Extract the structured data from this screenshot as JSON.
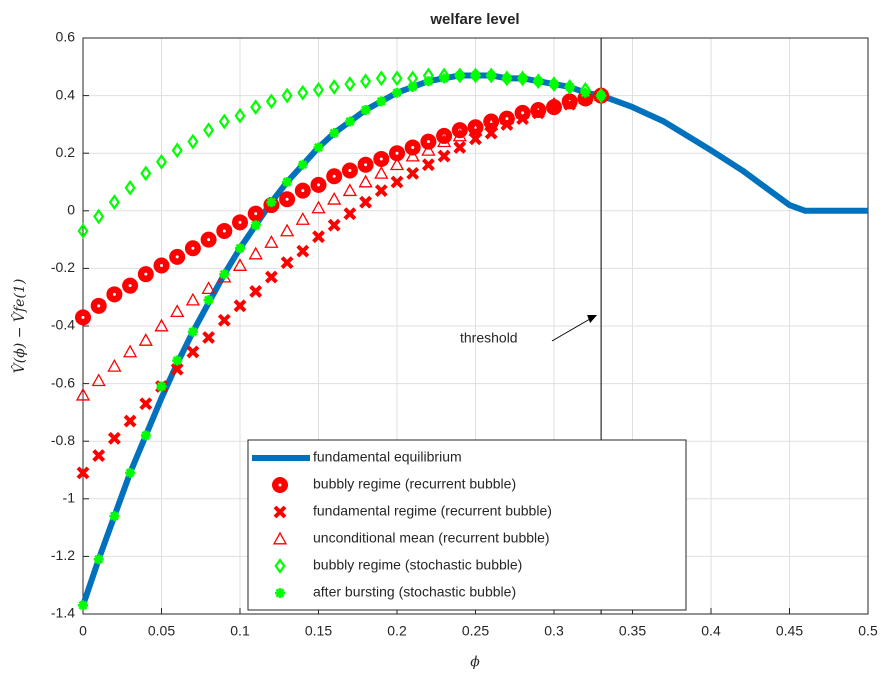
{
  "chart_data": {
    "type": "line",
    "title": "welfare level",
    "xlabel": "ϕ",
    "ylabel": "V̂(ϕ) − V̂fe(1)",
    "xlim": [
      0,
      0.5
    ],
    "xticks": [
      0,
      0.05,
      0.1,
      0.15,
      0.2,
      0.25,
      0.3,
      0.35,
      0.4,
      0.45,
      0.5
    ],
    "ylim": [
      -1.4,
      0.6
    ],
    "yticks": [
      -1.4,
      -1.2,
      -1,
      -0.8,
      -0.6,
      -0.4,
      -0.2,
      0,
      0.2,
      0.4,
      0.6
    ],
    "grid": true,
    "legend": "lower center",
    "threshold": {
      "x": 0.33,
      "label": "threshold"
    },
    "series": [
      {
        "name": "fundamental equilibrium",
        "color": "#0072bd",
        "marker": "none",
        "x": [
          0,
          0.01,
          0.02,
          0.03,
          0.04,
          0.05,
          0.06,
          0.07,
          0.08,
          0.09,
          0.1,
          0.11,
          0.12,
          0.13,
          0.14,
          0.15,
          0.16,
          0.17,
          0.18,
          0.19,
          0.2,
          0.21,
          0.22,
          0.23,
          0.24,
          0.25,
          0.26,
          0.27,
          0.28,
          0.29,
          0.3,
          0.31,
          0.32,
          0.33,
          0.35,
          0.37,
          0.4,
          0.42,
          0.45,
          0.46,
          0.5
        ],
        "values": [
          -1.37,
          -1.21,
          -1.06,
          -0.91,
          -0.78,
          -0.65,
          -0.53,
          -0.42,
          -0.32,
          -0.22,
          -0.13,
          -0.05,
          0.03,
          0.1,
          0.16,
          0.22,
          0.27,
          0.31,
          0.35,
          0.38,
          0.41,
          0.43,
          0.45,
          0.46,
          0.47,
          0.47,
          0.47,
          0.46,
          0.46,
          0.45,
          0.44,
          0.43,
          0.41,
          0.4,
          0.36,
          0.31,
          0.21,
          0.14,
          0.02,
          0,
          0
        ]
      },
      {
        "name": "bubbly regime (recurrent bubble)",
        "color": "#ff0000",
        "marker": "circle",
        "x": [
          0,
          0.01,
          0.02,
          0.03,
          0.04,
          0.05,
          0.06,
          0.07,
          0.08,
          0.09,
          0.1,
          0.11,
          0.12,
          0.13,
          0.14,
          0.15,
          0.16,
          0.17,
          0.18,
          0.19,
          0.2,
          0.21,
          0.22,
          0.23,
          0.24,
          0.25,
          0.26,
          0.27,
          0.28,
          0.29,
          0.3,
          0.31,
          0.32,
          0.33
        ],
        "values": [
          -0.37,
          -0.33,
          -0.29,
          -0.26,
          -0.22,
          -0.19,
          -0.16,
          -0.13,
          -0.1,
          -0.07,
          -0.04,
          -0.01,
          0.02,
          0.04,
          0.07,
          0.09,
          0.12,
          0.14,
          0.16,
          0.18,
          0.2,
          0.22,
          0.24,
          0.26,
          0.28,
          0.29,
          0.31,
          0.32,
          0.34,
          0.35,
          0.36,
          0.38,
          0.39,
          0.4
        ]
      },
      {
        "name": "fundamental regime (recurrent bubble)",
        "color": "#ff0000",
        "marker": "x",
        "x": [
          0,
          0.01,
          0.02,
          0.03,
          0.04,
          0.05,
          0.06,
          0.07,
          0.08,
          0.09,
          0.1,
          0.11,
          0.12,
          0.13,
          0.14,
          0.15,
          0.16,
          0.17,
          0.18,
          0.19,
          0.2,
          0.21,
          0.22,
          0.23,
          0.24,
          0.25,
          0.26,
          0.27,
          0.28,
          0.29,
          0.3,
          0.31,
          0.32,
          0.33
        ],
        "values": [
          -0.91,
          -0.85,
          -0.79,
          -0.73,
          -0.67,
          -0.61,
          -0.55,
          -0.49,
          -0.44,
          -0.38,
          -0.33,
          -0.28,
          -0.23,
          -0.18,
          -0.14,
          -0.09,
          -0.05,
          -0.01,
          0.03,
          0.07,
          0.1,
          0.13,
          0.16,
          0.19,
          0.22,
          0.25,
          0.27,
          0.3,
          0.32,
          0.34,
          0.36,
          0.37,
          0.39,
          0.4
        ]
      },
      {
        "name": "unconditional mean (recurrent bubble)",
        "color": "#ff0000",
        "marker": "triangle",
        "x": [
          0,
          0.01,
          0.02,
          0.03,
          0.04,
          0.05,
          0.06,
          0.07,
          0.08,
          0.09,
          0.1,
          0.11,
          0.12,
          0.13,
          0.14,
          0.15,
          0.16,
          0.17,
          0.18,
          0.19,
          0.2,
          0.21,
          0.22,
          0.23,
          0.24,
          0.25,
          0.26,
          0.27,
          0.28,
          0.29,
          0.3,
          0.31,
          0.32,
          0.33
        ],
        "values": [
          -0.64,
          -0.59,
          -0.54,
          -0.49,
          -0.45,
          -0.4,
          -0.35,
          -0.31,
          -0.27,
          -0.23,
          -0.19,
          -0.15,
          -0.11,
          -0.07,
          -0.03,
          0.01,
          0.04,
          0.07,
          0.1,
          0.13,
          0.16,
          0.19,
          0.21,
          0.24,
          0.26,
          0.28,
          0.3,
          0.32,
          0.34,
          0.35,
          0.37,
          0.38,
          0.39,
          0.4
        ]
      },
      {
        "name": "bubbly regime (stochastic bubble)",
        "color": "#00ff00",
        "marker": "diamond",
        "x": [
          0,
          0.01,
          0.02,
          0.03,
          0.04,
          0.05,
          0.06,
          0.07,
          0.08,
          0.09,
          0.1,
          0.11,
          0.12,
          0.13,
          0.14,
          0.15,
          0.16,
          0.17,
          0.18,
          0.19,
          0.2,
          0.21,
          0.22,
          0.23,
          0.24,
          0.25,
          0.26,
          0.27,
          0.28,
          0.29,
          0.3,
          0.31,
          0.32,
          0.33
        ],
        "values": [
          -0.07,
          -0.02,
          0.03,
          0.08,
          0.13,
          0.17,
          0.21,
          0.24,
          0.28,
          0.31,
          0.33,
          0.36,
          0.38,
          0.4,
          0.41,
          0.42,
          0.43,
          0.44,
          0.45,
          0.46,
          0.46,
          0.46,
          0.47,
          0.47,
          0.47,
          0.47,
          0.47,
          0.46,
          0.46,
          0.45,
          0.44,
          0.43,
          0.42,
          0.4
        ]
      },
      {
        "name": "after bursting (stochastic bubble)",
        "color": "#00ff00",
        "marker": "asterisk",
        "x": [
          0,
          0.01,
          0.02,
          0.03,
          0.04,
          0.05,
          0.06,
          0.07,
          0.08,
          0.09,
          0.1,
          0.11,
          0.12,
          0.13,
          0.14,
          0.15,
          0.16,
          0.17,
          0.18,
          0.19,
          0.2,
          0.21,
          0.22,
          0.23,
          0.24,
          0.25,
          0.26,
          0.27,
          0.28,
          0.29,
          0.3,
          0.31,
          0.32,
          0.33
        ],
        "values": [
          -1.37,
          -1.21,
          -1.06,
          -0.91,
          -0.78,
          -0.61,
          -0.52,
          -0.42,
          -0.31,
          -0.22,
          -0.13,
          -0.05,
          0.03,
          0.1,
          0.16,
          0.22,
          0.27,
          0.31,
          0.35,
          0.38,
          0.41,
          0.43,
          0.45,
          0.46,
          0.47,
          0.47,
          0.47,
          0.46,
          0.46,
          0.45,
          0.44,
          0.43,
          0.41,
          0.4
        ]
      }
    ]
  }
}
